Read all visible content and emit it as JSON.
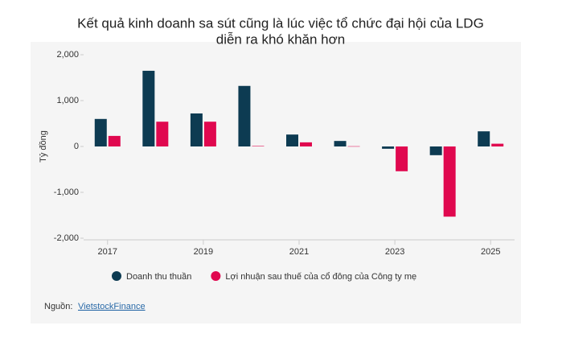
{
  "chart_data": {
    "type": "bar",
    "title": "Kết quả kinh doanh sa sút cũng là lúc việc tổ chức đại hội của LDG",
    "subtitle": "diễn ra khó khăn hơn",
    "y_label": "Tỷ đồng",
    "categories": [
      "2017",
      null,
      "2019",
      null,
      "2021",
      null,
      "2023",
      null,
      "2025"
    ],
    "series": [
      {
        "name": "Doanh thu thuần",
        "color": "#0d3b52",
        "values": [
          600,
          1650,
          720,
          1320,
          260,
          120,
          -50,
          -190,
          330
        ]
      },
      {
        "name": "Lợi nhuận sau thuế của cổ đông của Công ty mẹ",
        "color": "#e0084f",
        "values": [
          230,
          540,
          540,
          10,
          90,
          5,
          -540,
          -1530,
          60
        ]
      }
    ],
    "ylim": [
      -2000,
      2000
    ],
    "yticks": [
      {
        "value": 2000,
        "label": "2,000"
      },
      {
        "value": 1000,
        "label": "1,000"
      },
      0,
      {
        "value": -1000,
        "label": "-1,000"
      },
      {
        "value": -2000,
        "label": "-2,000"
      }
    ],
    "legend": "bottom",
    "source_label": "Nguồn:",
    "source": "VietstockFinance"
  }
}
